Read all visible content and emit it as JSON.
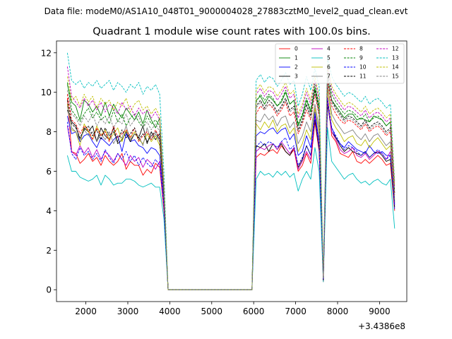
{
  "chart_data": {
    "type": "line",
    "suptitle": "Data file: modeM0/AS1A10_048T01_9000004028_27883cztM0_level2_quad_clean.evt",
    "title": "Quadrant 1 module wise count rates with 100.0s bins.",
    "xlabel": "",
    "ylabel": "",
    "x_offset_label": "+3.4386e8",
    "xlim": [
      1300,
      9650
    ],
    "ylim": [
      -0.6,
      12.6
    ],
    "xticks": [
      2000,
      3000,
      4000,
      5000,
      6000,
      7000,
      8000,
      9000
    ],
    "yticks": [
      0,
      2,
      4,
      6,
      8,
      10,
      12
    ],
    "x": [
      1560,
      1660,
      1760,
      1860,
      1960,
      2060,
      2160,
      2260,
      2360,
      2460,
      2560,
      2660,
      2760,
      2860,
      2960,
      3060,
      3160,
      3260,
      3360,
      3460,
      3560,
      3660,
      3760,
      3860,
      3960,
      4060,
      5960,
      6060,
      6160,
      6260,
      6360,
      6460,
      6560,
      6660,
      6760,
      6860,
      6960,
      7060,
      7160,
      7260,
      7360,
      7460,
      7560,
      7660,
      7760,
      7860,
      7960,
      8060,
      8160,
      8260,
      8360,
      8460,
      8560,
      8660,
      8760,
      8860,
      8960,
      9060,
      9160,
      9260,
      9360
    ],
    "legend": {
      "location": "upper right",
      "columns": 4
    },
    "series": [
      {
        "name": "0",
        "color": "#ff0000",
        "dash": "solid",
        "values": [
          9.7,
          7.0,
          6.9,
          6.4,
          6.6,
          6.9,
          6.5,
          6.7,
          6.3,
          6.8,
          6.5,
          6.3,
          6.5,
          6.9,
          6.1,
          6.5,
          6.3,
          6.3,
          5.8,
          6.1,
          5.9,
          6.4,
          6.2,
          4.0,
          0.0,
          0.0,
          0.0,
          6.7,
          6.9,
          6.8,
          7.0,
          7.1,
          6.9,
          7.3,
          7.0,
          6.8,
          7.1,
          6.0,
          6.3,
          6.9,
          6.4,
          8.5,
          7.0,
          0.4,
          9.8,
          7.8,
          7.5,
          6.9,
          6.8,
          6.7,
          7.0,
          6.5,
          6.4,
          6.6,
          6.4,
          6.6,
          6.8,
          6.6,
          6.3,
          6.4,
          4.0
        ]
      },
      {
        "name": "1",
        "color": "#008000",
        "dash": "solid",
        "values": [
          10.4,
          9.5,
          9.3,
          8.6,
          9.6,
          9.4,
          9.0,
          9.3,
          8.8,
          9.5,
          8.8,
          9.4,
          9.0,
          8.7,
          9.2,
          8.9,
          8.6,
          9.0,
          8.4,
          9.1,
          8.6,
          8.2,
          8.7,
          5.0,
          0.0,
          0.0,
          0.0,
          9.6,
          9.8,
          9.4,
          9.8,
          9.6,
          9.3,
          9.5,
          10.0,
          9.4,
          9.6,
          8.3,
          8.8,
          9.6,
          9.0,
          10.2,
          9.2,
          0.5,
          10.7,
          9.6,
          9.3,
          9.0,
          8.7,
          8.9,
          8.9,
          8.6,
          8.7,
          8.6,
          8.5,
          8.8,
          8.7,
          8.6,
          8.3,
          8.5,
          4.4
        ]
      },
      {
        "name": "2",
        "color": "#0000ff",
        "dash": "solid",
        "values": [
          8.8,
          7.9,
          8.0,
          7.5,
          7.8,
          7.9,
          7.5,
          7.2,
          7.7,
          7.5,
          7.3,
          7.6,
          7.8,
          7.0,
          7.9,
          7.5,
          7.6,
          7.3,
          7.2,
          6.9,
          7.2,
          7.1,
          6.8,
          4.6,
          0.0,
          0.0,
          0.0,
          7.8,
          8.0,
          7.9,
          8.1,
          8.2,
          7.9,
          8.1,
          8.2,
          7.6,
          7.9,
          6.8,
          7.0,
          7.8,
          7.2,
          9.0,
          7.5,
          0.6,
          9.4,
          8.2,
          7.7,
          7.4,
          7.2,
          7.5,
          7.3,
          7.1,
          7.0,
          6.9,
          7.3,
          7.0,
          6.9,
          7.0,
          6.8,
          6.8,
          4.1
        ]
      },
      {
        "name": "3",
        "color": "#000000",
        "dash": "solid",
        "values": [
          9.1,
          8.5,
          8.3,
          7.6,
          8.2,
          8.0,
          8.3,
          7.5,
          8.2,
          7.8,
          7.6,
          8.2,
          7.4,
          7.6,
          8.0,
          7.5,
          7.9,
          7.7,
          8.3,
          7.4,
          8.0,
          7.6,
          7.9,
          4.7,
          0.0,
          0.0,
          0.0,
          7.3,
          7.2,
          7.4,
          7.0,
          7.4,
          7.1,
          7.4,
          7.0,
          6.8,
          7.2,
          6.2,
          6.6,
          7.3,
          6.8,
          8.6,
          7.1,
          0.5,
          9.4,
          8.0,
          7.7,
          7.3,
          7.0,
          7.2,
          7.0,
          6.9,
          6.8,
          7.0,
          6.7,
          6.9,
          7.0,
          6.8,
          6.5,
          6.6,
          4.2
        ]
      },
      {
        "name": "4",
        "color": "#bf00bf",
        "dash": "solid",
        "values": [
          8.3,
          7.0,
          6.8,
          7.3,
          6.9,
          7.2,
          6.7,
          7.1,
          6.6,
          7.0,
          6.8,
          6.5,
          6.9,
          6.6,
          6.3,
          6.8,
          6.5,
          6.7,
          6.2,
          6.6,
          6.4,
          6.1,
          6.5,
          4.2,
          0.0,
          0.0,
          0.0,
          7.0,
          7.2,
          7.1,
          7.3,
          7.4,
          7.1,
          7.5,
          7.2,
          6.9,
          7.2,
          6.1,
          6.5,
          7.0,
          6.6,
          8.8,
          7.2,
          0.5,
          9.6,
          8.0,
          7.6,
          7.1,
          6.9,
          7.0,
          7.2,
          6.8,
          6.7,
          6.9,
          6.6,
          6.8,
          7.0,
          6.9,
          6.6,
          7.0,
          4.3
        ]
      },
      {
        "name": "5",
        "color": "#00bfbf",
        "dash": "solid",
        "values": [
          6.8,
          6.0,
          6.0,
          5.7,
          5.6,
          5.5,
          5.6,
          5.8,
          5.3,
          5.8,
          5.6,
          5.3,
          5.4,
          5.4,
          5.6,
          5.6,
          5.5,
          5.3,
          5.2,
          5.3,
          5.4,
          5.2,
          5.2,
          3.6,
          0.0,
          0.0,
          0.0,
          5.6,
          6.0,
          5.8,
          5.9,
          5.7,
          6.0,
          5.8,
          6.0,
          5.7,
          5.9,
          5.0,
          5.6,
          6.0,
          5.6,
          7.2,
          6.0,
          0.4,
          8.2,
          6.5,
          6.2,
          5.9,
          5.6,
          5.8,
          5.9,
          5.6,
          5.4,
          5.5,
          5.3,
          5.5,
          5.6,
          5.4,
          5.3,
          5.6,
          3.1
        ]
      },
      {
        "name": "6",
        "color": "#bfbf00",
        "dash": "solid",
        "values": [
          9.4,
          8.1,
          8.0,
          7.3,
          8.4,
          8.0,
          7.6,
          8.3,
          7.8,
          8.1,
          7.6,
          7.9,
          8.2,
          7.5,
          8.1,
          7.7,
          8.0,
          7.6,
          7.4,
          7.9,
          7.5,
          7.8,
          7.3,
          4.8,
          0.0,
          0.0,
          0.0,
          8.4,
          8.1,
          8.5,
          8.2,
          8.6,
          8.0,
          8.3,
          8.4,
          7.9,
          8.2,
          7.0,
          7.4,
          8.1,
          7.6,
          9.2,
          7.9,
          0.7,
          10.2,
          8.6,
          8.2,
          7.9,
          7.5,
          7.7,
          7.8,
          7.4,
          7.3,
          7.6,
          7.2,
          7.5,
          7.7,
          7.4,
          7.1,
          7.3,
          4.5
        ]
      },
      {
        "name": "7",
        "color": "#808080",
        "dash": "solid",
        "values": [
          9.3,
          8.2,
          8.0,
          7.6,
          8.1,
          7.8,
          8.0,
          7.5,
          7.9,
          7.6,
          8.0,
          7.4,
          7.8,
          7.7,
          8.3,
          7.6,
          7.9,
          7.8,
          7.3,
          8.2,
          7.6,
          7.9,
          7.5,
          4.9,
          0.0,
          0.0,
          0.0,
          8.6,
          8.5,
          8.9,
          8.6,
          8.8,
          8.3,
          8.7,
          8.8,
          8.2,
          8.5,
          7.4,
          7.8,
          8.5,
          8.0,
          9.4,
          8.2,
          0.6,
          10.4,
          8.9,
          8.5,
          8.2,
          7.9,
          8.0,
          8.1,
          7.8,
          7.6,
          7.9,
          7.5,
          7.8,
          7.9,
          7.6,
          7.3,
          7.5,
          4.6
        ]
      },
      {
        "name": "8",
        "color": "#ff0000",
        "dash": "dashed",
        "values": [
          9.9,
          8.6,
          8.4,
          7.9,
          8.3,
          8.1,
          7.6,
          8.2,
          7.8,
          8.0,
          7.5,
          8.3,
          7.7,
          7.9,
          8.1,
          7.7,
          8.2,
          7.5,
          7.8,
          8.0,
          7.6,
          8.1,
          7.7,
          4.9,
          0.0,
          0.0,
          0.0,
          8.9,
          9.3,
          9.1,
          9.4,
          9.2,
          8.8,
          9.1,
          9.5,
          8.8,
          9.0,
          7.9,
          8.4,
          9.1,
          8.6,
          9.9,
          8.8,
          0.5,
          10.6,
          9.3,
          8.9,
          8.6,
          8.4,
          8.6,
          8.5,
          8.3,
          8.1,
          8.4,
          8.0,
          8.2,
          8.3,
          8.1,
          7.8,
          8.0,
          4.8
        ]
      },
      {
        "name": "9",
        "color": "#008000",
        "dash": "dashed",
        "values": [
          10.5,
          9.1,
          8.8,
          8.5,
          8.9,
          9.2,
          8.7,
          9.0,
          8.6,
          8.8,
          8.4,
          9.1,
          8.5,
          8.9,
          8.3,
          8.7,
          8.9,
          8.5,
          8.2,
          8.8,
          8.4,
          8.6,
          8.3,
          5.1,
          0.0,
          0.0,
          0.0,
          9.5,
          9.9,
          9.6,
          9.9,
          9.7,
          9.3,
          9.6,
          10.1,
          9.4,
          9.6,
          8.4,
          8.9,
          9.7,
          9.1,
          10.4,
          9.3,
          0.6,
          11.0,
          9.9,
          9.5,
          9.2,
          8.9,
          9.1,
          9.0,
          8.8,
          8.6,
          8.9,
          8.5,
          8.7,
          8.8,
          8.6,
          8.3,
          8.5,
          5.0
        ]
      },
      {
        "name": "10",
        "color": "#0000ff",
        "dash": "dashed",
        "values": [
          8.5,
          6.9,
          6.6,
          7.2,
          6.8,
          7.0,
          6.6,
          6.9,
          6.5,
          7.1,
          6.7,
          6.4,
          6.9,
          6.6,
          7.0,
          6.5,
          6.8,
          6.3,
          6.7,
          6.4,
          6.2,
          6.6,
          6.3,
          4.2,
          0.0,
          0.0,
          0.0,
          7.2,
          7.5,
          7.3,
          7.5,
          7.4,
          7.2,
          7.5,
          7.7,
          7.1,
          7.3,
          6.3,
          6.7,
          7.3,
          6.8,
          8.9,
          7.3,
          0.5,
          9.7,
          8.2,
          7.8,
          7.4,
          7.1,
          7.3,
          7.2,
          7.0,
          6.8,
          7.0,
          6.7,
          6.9,
          7.1,
          6.9,
          6.6,
          6.8,
          4.3
        ]
      },
      {
        "name": "11",
        "color": "#000000",
        "dash": "dashed",
        "values": [
          9.6,
          8.4,
          8.2,
          7.7,
          8.1,
          8.3,
          7.8,
          8.1,
          7.6,
          8.2,
          7.8,
          8.0,
          7.5,
          8.1,
          7.7,
          7.9,
          8.2,
          7.6,
          7.9,
          7.5,
          7.8,
          8.0,
          7.6,
          4.8,
          0.0,
          0.0,
          0.0,
          9.3,
          9.6,
          9.2,
          9.6,
          9.4,
          9.0,
          9.3,
          9.7,
          9.1,
          9.3,
          8.1,
          8.6,
          9.4,
          8.8,
          10.1,
          9.0,
          0.5,
          10.8,
          9.6,
          9.2,
          8.9,
          8.6,
          8.8,
          8.7,
          8.5,
          8.3,
          8.6,
          8.2,
          8.4,
          8.5,
          8.3,
          8.0,
          8.2,
          4.9
        ]
      },
      {
        "name": "12",
        "color": "#bf00bf",
        "dash": "dashed",
        "values": [
          11.3,
          9.8,
          9.5,
          9.2,
          9.7,
          9.3,
          9.6,
          9.1,
          9.5,
          9.0,
          9.4,
          9.2,
          8.9,
          9.5,
          9.1,
          9.3,
          8.8,
          9.2,
          8.9,
          9.1,
          8.7,
          9.0,
          8.6,
          5.3,
          0.0,
          0.0,
          0.0,
          9.9,
          10.2,
          9.8,
          10.1,
          10.0,
          9.6,
          9.9,
          10.3,
          9.7,
          9.9,
          8.7,
          9.2,
          10.0,
          9.4,
          10.6,
          9.6,
          0.7,
          11.3,
          10.1,
          9.7,
          9.4,
          9.1,
          9.3,
          9.2,
          9.0,
          8.8,
          9.1,
          8.7,
          8.9,
          9.0,
          8.8,
          8.5,
          8.7,
          5.2
        ]
      },
      {
        "name": "13",
        "color": "#00bfbf",
        "dash": "dashed",
        "values": [
          12.0,
          10.6,
          10.4,
          10.6,
          10.2,
          10.5,
          10.3,
          10.6,
          10.2,
          10.4,
          10.6,
          10.1,
          10.5,
          10.3,
          10.0,
          10.4,
          10.2,
          10.5,
          9.9,
          10.3,
          10.1,
          10.4,
          9.9,
          6.0,
          0.0,
          0.0,
          0.0,
          10.6,
          10.9,
          10.5,
          10.8,
          10.7,
          10.3,
          10.6,
          11.0,
          10.4,
          10.6,
          9.3,
          9.9,
          10.8,
          10.1,
          11.2,
          10.3,
          0.8,
          11.8,
          10.8,
          10.4,
          10.1,
          9.8,
          10.0,
          9.9,
          9.7,
          9.5,
          9.8,
          9.4,
          9.6,
          9.7,
          9.5,
          9.2,
          9.4,
          5.5
        ]
      },
      {
        "name": "14",
        "color": "#bfbf00",
        "dash": "dashed",
        "values": [
          10.8,
          9.6,
          9.8,
          9.3,
          9.9,
          9.5,
          9.8,
          9.2,
          9.7,
          9.4,
          9.6,
          9.1,
          9.5,
          9.3,
          9.7,
          9.0,
          9.4,
          9.6,
          9.1,
          9.3,
          8.9,
          9.2,
          8.8,
          5.4,
          0.0,
          0.0,
          0.0,
          10.1,
          10.4,
          10.0,
          10.3,
          10.2,
          9.8,
          10.1,
          10.5,
          9.9,
          10.1,
          8.9,
          9.4,
          10.2,
          9.6,
          10.8,
          9.8,
          0.7,
          11.4,
          10.3,
          9.9,
          9.6,
          9.3,
          9.5,
          9.4,
          9.2,
          9.0,
          9.3,
          8.9,
          9.1,
          9.2,
          9.0,
          8.7,
          8.9,
          5.3
        ]
      },
      {
        "name": "15",
        "color": "#808080",
        "dash": "dashed",
        "values": [
          10.1,
          8.9,
          8.7,
          8.3,
          8.8,
          8.5,
          8.9,
          8.3,
          8.7,
          8.4,
          8.8,
          8.2,
          8.6,
          8.4,
          8.9,
          8.3,
          8.6,
          8.8,
          8.2,
          8.5,
          8.1,
          8.4,
          8.0,
          5.0,
          0.0,
          0.0,
          0.0,
          9.2,
          9.5,
          9.1,
          9.4,
          9.3,
          8.9,
          9.2,
          9.6,
          9.0,
          9.2,
          8.0,
          8.5,
          9.3,
          8.7,
          10.0,
          8.9,
          0.6,
          10.9,
          9.5,
          9.1,
          8.8,
          8.5,
          8.7,
          8.6,
          8.4,
          8.2,
          8.5,
          8.1,
          8.3,
          8.4,
          8.2,
          7.9,
          8.1,
          4.9
        ]
      }
    ]
  }
}
